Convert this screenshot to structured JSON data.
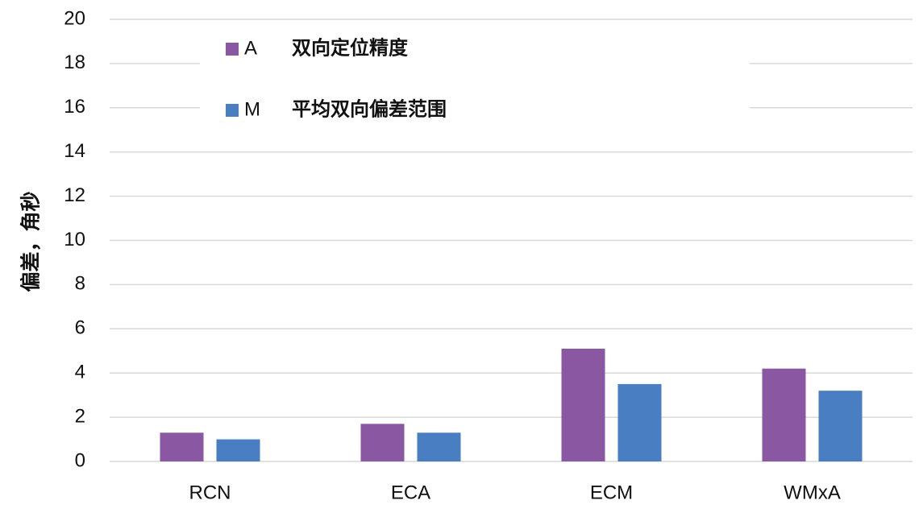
{
  "chart_data": {
    "type": "bar",
    "y_label": "偏差，角秒",
    "categories": [
      "RCN",
      "ECA",
      "ECM",
      "WMxA"
    ],
    "series": [
      {
        "name": "A",
        "description": "双向定位精度",
        "color": "#8a57a3",
        "values": [
          1.3,
          1.7,
          5.1,
          4.2
        ]
      },
      {
        "name": "M",
        "description": "平均双向偏差范围",
        "color": "#4a7ec2",
        "values": [
          1.0,
          1.3,
          3.5,
          3.2
        ]
      }
    ],
    "ylim": [
      0,
      20
    ],
    "yticks": [
      0,
      2,
      4,
      6,
      8,
      10,
      12,
      14,
      16,
      18,
      20
    ],
    "grid": true
  }
}
